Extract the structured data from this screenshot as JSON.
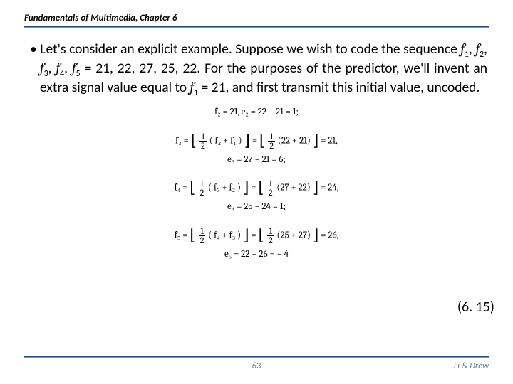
{
  "header": {
    "title": "Fundamentals of Multimedia, Chapter 6"
  },
  "body": {
    "bullet": "• ",
    "text_a": "Let's consider an explicit example. Suppose we wish to code the sequence ",
    "f1": "f",
    "s1": "1",
    "c1": ", ",
    "f2": "f",
    "s2": "2",
    "c2": ", ",
    "f3": "f",
    "s3": "3",
    "c3": ", ",
    "f4": "f",
    "s4": "4",
    "c4": ", ",
    "f5": "f",
    "s5": "5",
    "text_b": " = 21, 22, 27, 25, 22. For the purposes of the predictor, we'll invent an extra signal value equal to ",
    "f1b": "f",
    "s1b": "1",
    "text_c": " = 21, and first transmit this initial value, uncoded."
  },
  "eq": {
    "l1a": "f̂",
    "l1b": "₂ = 21, e₂ = 22 − 21 = 1;",
    "l3_lead": "f̂₃ = ",
    "half_n": "1",
    "half_d": "2",
    "l3_in1": "( f₂ + f₁ )",
    "l3_eq": " = ",
    "l3_in2": "(22 + 21)",
    "l3_tail": " = 21,",
    "l4": "e₃ = 27 − 21 = 6;",
    "l5_lead": "f̂₄ = ",
    "l5_in1": "( f₃ + f₂ )",
    "l5_in2": "(27 + 22)",
    "l5_tail": " = 24,",
    "l6": "e₄ = 25 − 24 = 1;",
    "l7_lead": "f̂₅ = ",
    "l7_in1": "( f₄ + f₃ )",
    "l7_in2": "(25 + 27)",
    "l7_tail": " = 26,",
    "l8": "e₅ = 22 − 26 = − 4"
  },
  "eq_num": "(6. 15)",
  "footer": {
    "page": "63",
    "authors": "Li & Drew"
  },
  "colors": {
    "rule_top": "#1f4e79",
    "rule_bot": "#6a93c4",
    "link": "#5a7fb0",
    "bg": "#ffffff"
  }
}
